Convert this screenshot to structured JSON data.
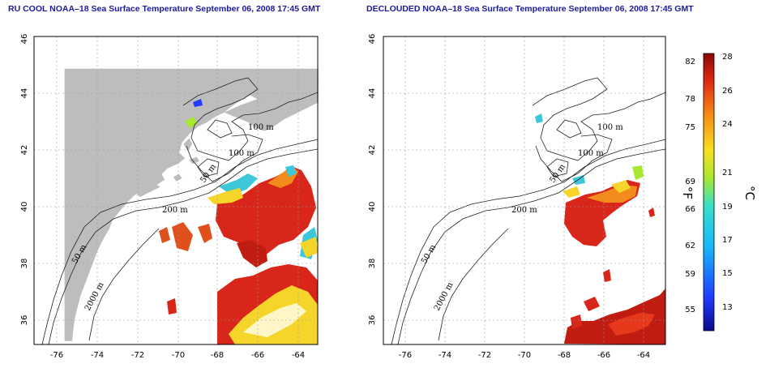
{
  "left_panel": {
    "title": "RU COOL NOAA–18 Sea Surface Temperature September 06, 2008 17:45 GMT"
  },
  "right_panel": {
    "title": "DECLOUDED NOAA–18 Sea Surface Temperature September 06, 2008 17:45 GMT"
  },
  "axes": {
    "lon_ticks": [
      "-76",
      "-74",
      "-72",
      "-70",
      "-68",
      "-66",
      "-64"
    ],
    "lat_ticks": [
      "36",
      "38",
      "40",
      "42",
      "44",
      "46"
    ]
  },
  "contour_labels": {
    "m100": "100 m",
    "m50": "50 m",
    "m200": "200 m",
    "m2000": "2000 m"
  },
  "colorbar": {
    "f_ticks": [
      "82",
      "78",
      "75",
      "69",
      "66",
      "62",
      "59",
      "55"
    ],
    "c_ticks": [
      "28",
      "26",
      "24",
      "21",
      "19",
      "17",
      "15",
      "13"
    ],
    "f_unit": "°F",
    "c_unit": "°C"
  },
  "colors": {
    "land": "#bdbdbd",
    "title": "#1a1aa0",
    "grid": "#9a9a9a",
    "sst_warm": "#d8261a",
    "sst_hot": "#a51010",
    "sst_mid": "#f28c1c",
    "sst_yellow": "#f5d52a",
    "sst_cool": "#3cc8d8"
  },
  "layer_names": [
    "land",
    "sst",
    "bathymetry"
  ]
}
